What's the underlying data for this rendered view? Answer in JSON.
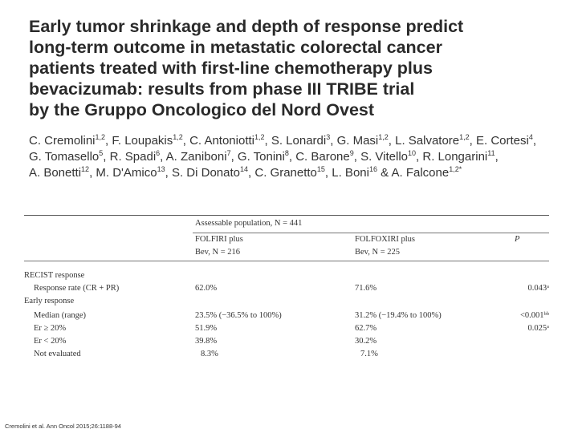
{
  "title_lines": [
    "Early tumor shrinkage and depth of response predict",
    "long-term outcome in metastatic colorectal cancer",
    "patients treated with first-line chemotherapy plus",
    "bevacizumab: results from phase III TRIBE trial",
    "by the Gruppo Oncologico del Nord Ovest"
  ],
  "authors": [
    [
      {
        "n": "C. Cremolini",
        "s": "1,2"
      },
      {
        "n": ", F. Loupakis",
        "s": "1,2"
      },
      {
        "n": ", C. Antoniotti",
        "s": "1,2"
      },
      {
        "n": ", S. Lonardi",
        "s": "3"
      },
      {
        "n": ", G. Masi",
        "s": "1,2"
      },
      {
        "n": ", L. Salvatore",
        "s": "1,2"
      },
      {
        "n": ", E. Cortesi",
        "s": "4"
      },
      {
        "n": ",",
        "s": ""
      }
    ],
    [
      {
        "n": "G. Tomasello",
        "s": "5"
      },
      {
        "n": ", R. Spadi",
        "s": "6"
      },
      {
        "n": ", A. Zaniboni",
        "s": "7"
      },
      {
        "n": ", G. Tonini",
        "s": "8"
      },
      {
        "n": ", C. Barone",
        "s": "9"
      },
      {
        "n": ", S. Vitello",
        "s": "10"
      },
      {
        "n": ", R. Longarini",
        "s": "11"
      },
      {
        "n": ",",
        "s": ""
      }
    ],
    [
      {
        "n": "A. Bonetti",
        "s": "12"
      },
      {
        "n": ", M. D'Amico",
        "s": "13"
      },
      {
        "n": ", S. Di Donato",
        "s": "14"
      },
      {
        "n": ", C. Granetto",
        "s": "15"
      },
      {
        "n": ", L. Boni",
        "s": "16"
      },
      {
        "n": " & A. Falcone",
        "s": "1,2*"
      }
    ]
  ],
  "table": {
    "population_header": "Assessable population, N = 441",
    "col1_line1": "FOLFIRI plus",
    "col1_line2": "Bev, N = 216",
    "col2_line1": "FOLFOXIRI plus",
    "col2_line2": "Bev, N = 225",
    "col3": "P",
    "rows": [
      {
        "label": "RECIST response",
        "indent": false,
        "v1": "",
        "v2": "",
        "p": ""
      },
      {
        "label": "Response rate (CR + PR)",
        "indent": true,
        "v1": "62.0%",
        "v2": "71.6%",
        "p": "0.043ᵃ"
      },
      {
        "label": "Early response",
        "indent": false,
        "v1": "",
        "v2": "",
        "p": ""
      },
      {
        "label": "Median (range)",
        "indent": true,
        "v1": "23.5% (−36.5% to 100%)",
        "v2": "31.2% (−19.4% to 100%)",
        "p": "<0.001ᵇᵇ"
      },
      {
        "label": "Er ≥ 20%",
        "indent": true,
        "v1": "51.9%",
        "v2": "62.7%",
        "p": "0.025ᵃ"
      },
      {
        "label": "Er < 20%",
        "indent": true,
        "v1": "39.8%",
        "v2": "30.2%",
        "p": ""
      },
      {
        "label": "Not evaluated",
        "indent": true,
        "v1": "8.3%",
        "v2": "7.1%",
        "p": ""
      }
    ]
  },
  "footer": "Cremolini et al. Ann Oncol 2015;26:1188-94"
}
